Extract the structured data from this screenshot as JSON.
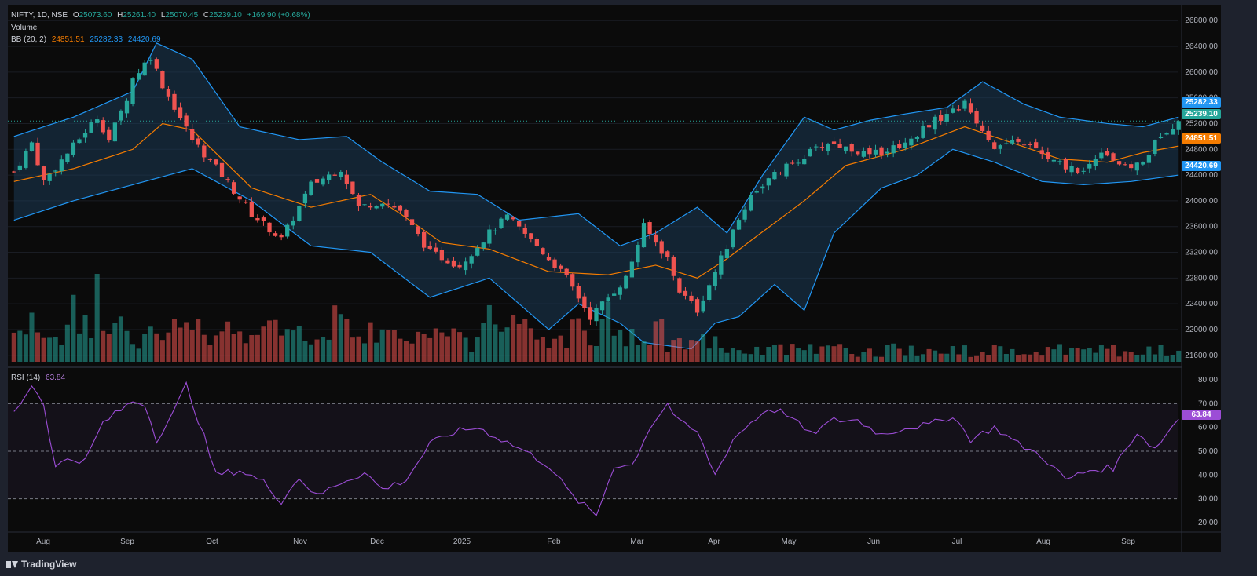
{
  "header": {
    "symbol": "NIFTY, 1D, NSE",
    "open_label": "O",
    "open": "25073.60",
    "high_label": "H",
    "high": "25261.40",
    "low_label": "L",
    "low": "25070.45",
    "close_label": "C",
    "close": "25239.10",
    "change": "+169.90 (+0.68%)",
    "volume_label": "Volume",
    "bb_label": "BB (20, 2)",
    "bb_basis": "24851.51",
    "bb_upper": "25282.33",
    "bb_lower": "24420.69",
    "rsi_label": "RSI (14)",
    "rsi_value": "63.84"
  },
  "price_tags": {
    "upper": "25282.33",
    "close": "25239.10",
    "basis": "24851.51",
    "lower": "24420.69",
    "rsi": "63.84"
  },
  "branding": {
    "logo_text": "TradingView"
  },
  "colors": {
    "up": "#26a69a",
    "down": "#ef5350",
    "bb_basis": "#f57c00",
    "bb_band": "#2196f3",
    "rsi": "#9c4dd6",
    "background": "#0b0b0b",
    "frame": "#1e222d"
  },
  "chart_data": [
    {
      "type": "candlestick",
      "title": "NIFTY, 1D, NSE",
      "x_tick_labels": [
        "Aug",
        "Sep",
        "Oct",
        "Nov",
        "Dec",
        "2025",
        "Feb",
        "Mar",
        "Apr",
        "May",
        "Jun",
        "Jul",
        "Aug",
        "Sep"
      ],
      "y_tick_labels": [
        "26800.00",
        "26400.00",
        "26000.00",
        "25600.00",
        "25200.00",
        "24800.00",
        "24400.00",
        "24000.00",
        "23600.00",
        "23200.00",
        "22800.00",
        "22400.00",
        "22000.00",
        "21600.00"
      ],
      "ylim": [
        21500,
        26900
      ],
      "close_path_points": [
        [
          0,
          24450
        ],
        [
          3,
          24900
        ],
        [
          5,
          24300
        ],
        [
          10,
          24850
        ],
        [
          14,
          25300
        ],
        [
          16,
          24950
        ],
        [
          19,
          25600
        ],
        [
          20,
          25900
        ],
        [
          23,
          26250
        ],
        [
          25,
          25800
        ],
        [
          30,
          24950
        ],
        [
          35,
          24400
        ],
        [
          40,
          23800
        ],
        [
          45,
          23400
        ],
        [
          50,
          24250
        ],
        [
          55,
          24500
        ],
        [
          58,
          23900
        ],
        [
          62,
          24000
        ],
        [
          65,
          23850
        ],
        [
          70,
          23200
        ],
        [
          75,
          23000
        ],
        [
          80,
          23500
        ],
        [
          83,
          23750
        ],
        [
          88,
          23300
        ],
        [
          93,
          22800
        ],
        [
          97,
          22200
        ],
        [
          100,
          22500
        ],
        [
          103,
          22800
        ],
        [
          106,
          23600
        ],
        [
          110,
          23100
        ],
        [
          112,
          22600
        ],
        [
          115,
          22300
        ],
        [
          118,
          22900
        ],
        [
          121,
          23500
        ],
        [
          124,
          24100
        ],
        [
          128,
          24400
        ],
        [
          133,
          24700
        ],
        [
          137,
          24900
        ],
        [
          141,
          24800
        ],
        [
          144,
          24700
        ],
        [
          150,
          24900
        ],
        [
          154,
          25200
        ],
        [
          158,
          25400
        ],
        [
          160,
          25500
        ],
        [
          165,
          24850
        ],
        [
          170,
          24900
        ],
        [
          175,
          24600
        ],
        [
          180,
          24450
        ],
        [
          183,
          24800
        ],
        [
          187,
          24500
        ],
        [
          190,
          24600
        ],
        [
          193,
          25050
        ],
        [
          196,
          25239
        ]
      ],
      "basis_path_points": [
        [
          0,
          24300
        ],
        [
          10,
          24500
        ],
        [
          20,
          24800
        ],
        [
          25,
          25200
        ],
        [
          30,
          25100
        ],
        [
          40,
          24200
        ],
        [
          50,
          23900
        ],
        [
          55,
          24000
        ],
        [
          60,
          24100
        ],
        [
          65,
          23800
        ],
        [
          72,
          23350
        ],
        [
          80,
          23250
        ],
        [
          90,
          22900
        ],
        [
          100,
          22850
        ],
        [
          108,
          23000
        ],
        [
          115,
          22800
        ],
        [
          120,
          23100
        ],
        [
          125,
          23450
        ],
        [
          133,
          24000
        ],
        [
          140,
          24550
        ],
        [
          150,
          24800
        ],
        [
          160,
          25150
        ],
        [
          168,
          24900
        ],
        [
          176,
          24650
        ],
        [
          184,
          24600
        ],
        [
          190,
          24750
        ],
        [
          196,
          24851
        ]
      ],
      "upper_path_points": [
        [
          0,
          25000
        ],
        [
          10,
          25300
        ],
        [
          20,
          25700
        ],
        [
          24,
          26450
        ],
        [
          30,
          26200
        ],
        [
          38,
          25150
        ],
        [
          48,
          24950
        ],
        [
          56,
          25000
        ],
        [
          62,
          24600
        ],
        [
          70,
          24150
        ],
        [
          78,
          24100
        ],
        [
          85,
          23700
        ],
        [
          95,
          23800
        ],
        [
          102,
          23300
        ],
        [
          108,
          23500
        ],
        [
          115,
          23900
        ],
        [
          120,
          23500
        ],
        [
          126,
          24400
        ],
        [
          133,
          25300
        ],
        [
          138,
          25100
        ],
        [
          144,
          25250
        ],
        [
          150,
          25350
        ],
        [
          157,
          25450
        ],
        [
          163,
          25850
        ],
        [
          170,
          25500
        ],
        [
          176,
          25300
        ],
        [
          184,
          25200
        ],
        [
          190,
          25150
        ],
        [
          196,
          25300
        ]
      ],
      "lower_path_points": [
        [
          0,
          23700
        ],
        [
          10,
          24000
        ],
        [
          22,
          24300
        ],
        [
          30,
          24500
        ],
        [
          40,
          24000
        ],
        [
          50,
          23300
        ],
        [
          60,
          23200
        ],
        [
          70,
          22500
        ],
        [
          80,
          22800
        ],
        [
          90,
          22000
        ],
        [
          95,
          22400
        ],
        [
          102,
          22100
        ],
        [
          106,
          21800
        ],
        [
          114,
          21700
        ],
        [
          118,
          22100
        ],
        [
          122,
          22200
        ],
        [
          128,
          22700
        ],
        [
          133,
          22300
        ],
        [
          138,
          23500
        ],
        [
          146,
          24200
        ],
        [
          152,
          24400
        ],
        [
          158,
          24800
        ],
        [
          165,
          24600
        ],
        [
          173,
          24300
        ],
        [
          180,
          24250
        ],
        [
          188,
          24300
        ],
        [
          196,
          24400
        ]
      ],
      "series": [
        {
          "name": "BB upper",
          "last": 25282.33
        },
        {
          "name": "BB basis",
          "last": 24851.51
        },
        {
          "name": "BB lower",
          "last": 24420.69
        },
        {
          "name": "NIFTY close",
          "last": 25239.1
        }
      ]
    },
    {
      "type": "bar",
      "title": "Volume"
    },
    {
      "type": "line",
      "title": "RSI (14)",
      "y_tick_labels": [
        "80.00",
        "70.00",
        "60.00",
        "50.00",
        "40.00",
        "30.00",
        "20.00"
      ],
      "ylim": [
        16,
        84
      ],
      "reference_lines": [
        70,
        50,
        30
      ],
      "rsi_path_points": [
        [
          0,
          66
        ],
        [
          3,
          78
        ],
        [
          5,
          70
        ],
        [
          7,
          43
        ],
        [
          9,
          47
        ],
        [
          12,
          46
        ],
        [
          15,
          62
        ],
        [
          20,
          71
        ],
        [
          22,
          70
        ],
        [
          24,
          55
        ],
        [
          27,
          67
        ],
        [
          29,
          78
        ],
        [
          32,
          56
        ],
        [
          34,
          40
        ],
        [
          38,
          42
        ],
        [
          42,
          37
        ],
        [
          45,
          29
        ],
        [
          48,
          39
        ],
        [
          51,
          31
        ],
        [
          55,
          37
        ],
        [
          59,
          41
        ],
        [
          62,
          34
        ],
        [
          66,
          38
        ],
        [
          70,
          53
        ],
        [
          74,
          58
        ],
        [
          78,
          60
        ],
        [
          82,
          55
        ],
        [
          86,
          50
        ],
        [
          90,
          44
        ],
        [
          94,
          31
        ],
        [
          98,
          23
        ],
        [
          101,
          44
        ],
        [
          104,
          44
        ],
        [
          107,
          60
        ],
        [
          110,
          70
        ],
        [
          112,
          62
        ],
        [
          115,
          58
        ],
        [
          118,
          40
        ],
        [
          121,
          55
        ],
        [
          124,
          62
        ],
        [
          127,
          68
        ],
        [
          130,
          66
        ],
        [
          134,
          57
        ],
        [
          138,
          63
        ],
        [
          142,
          63
        ],
        [
          146,
          57
        ],
        [
          150,
          60
        ],
        [
          154,
          61
        ],
        [
          158,
          65
        ],
        [
          161,
          55
        ],
        [
          165,
          60
        ],
        [
          169,
          53
        ],
        [
          173,
          48
        ],
        [
          177,
          38
        ],
        [
          181,
          42
        ],
        [
          185,
          43
        ],
        [
          189,
          58
        ],
        [
          192,
          51
        ],
        [
          196,
          64
        ]
      ],
      "last_value": 63.84
    }
  ]
}
